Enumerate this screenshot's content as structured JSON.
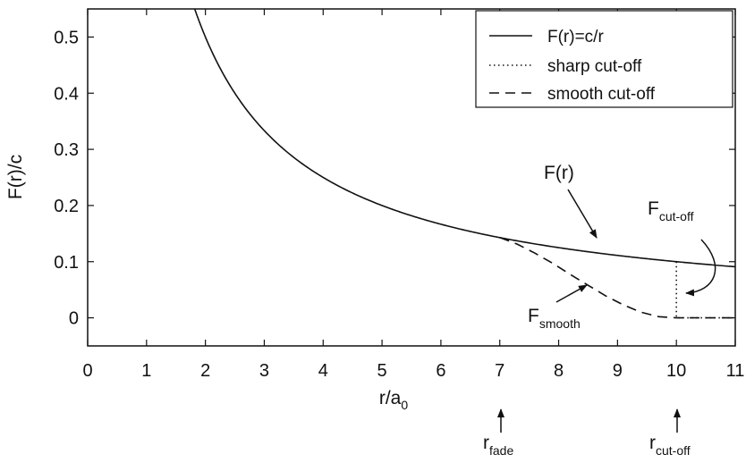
{
  "chart_data": {
    "type": "line",
    "title": "",
    "xlabel": "r/a",
    "xlabel_sub": "0",
    "ylabel": "F(r)/c",
    "xlim": [
      0,
      11
    ],
    "ylim": [
      -0.05,
      0.55
    ],
    "xticks": [
      0,
      1,
      2,
      3,
      4,
      5,
      6,
      7,
      8,
      9,
      10,
      11
    ],
    "yticks": [
      0,
      0.1,
      0.2,
      0.3,
      0.4,
      0.5
    ],
    "grid": false,
    "legend_position": "top-right",
    "r_fade": 7,
    "r_cutoff": 10,
    "series": [
      {
        "name": "F(r)=c/r",
        "style": "solid",
        "formula": "1/r",
        "x_range": [
          1.8,
          11
        ]
      },
      {
        "name": "sharp cut-off",
        "style": "dotted",
        "x": [
          10,
          10,
          11
        ],
        "y": [
          0.1,
          0,
          0
        ]
      },
      {
        "name": "smooth cut-off",
        "style": "dashed",
        "x": [
          7.0,
          7.3,
          7.6,
          7.9,
          8.2,
          8.5,
          8.8,
          9.1,
          9.4,
          9.7,
          10.0,
          10.5,
          11.0
        ],
        "y": [
          0.143,
          0.131,
          0.115,
          0.097,
          0.077,
          0.058,
          0.039,
          0.023,
          0.01,
          0.002,
          0.0,
          0.0,
          0.0
        ]
      }
    ],
    "annotations": {
      "f_r": {
        "text": "F(r)",
        "x": 8.45,
        "y": 0.2,
        "arrow_to": [
          8.85,
          0.115
        ]
      },
      "f_cutoff": {
        "text": "F",
        "sub": "cut-off",
        "x": 10.05,
        "y": 0.185,
        "arrow_to": [
          10.0,
          0.048
        ]
      },
      "f_smooth": {
        "text": "F",
        "sub": "smooth",
        "x": 7.3,
        "y": 0.005,
        "arrow_to": [
          8.55,
          0.058
        ]
      },
      "r_fade": {
        "text": "r",
        "sub": "fade"
      },
      "r_cutoff": {
        "text": "r",
        "sub": "cut-off"
      }
    }
  }
}
